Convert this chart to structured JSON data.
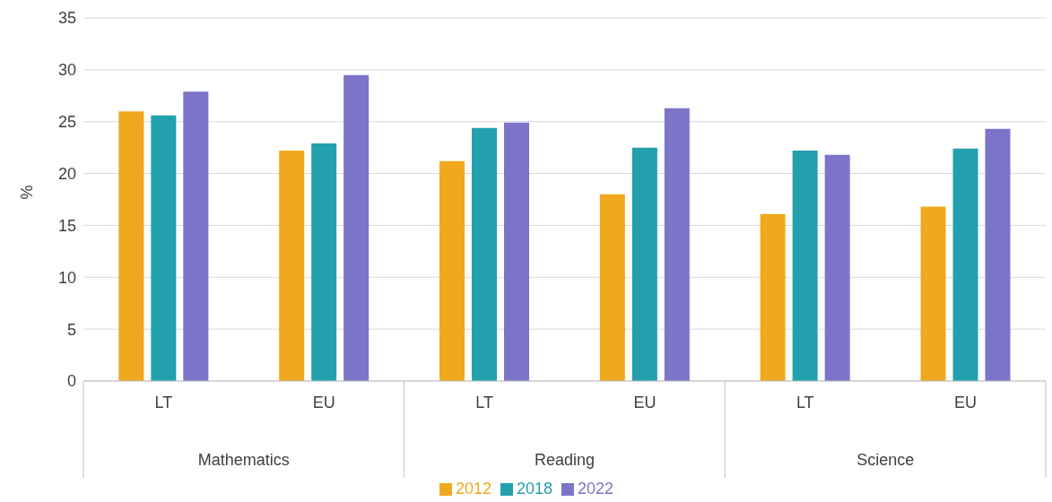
{
  "chart_data": {
    "type": "bar",
    "ylabel": "%",
    "categories": [
      "LT",
      "EU",
      "LT",
      "EU",
      "LT",
      "EU"
    ],
    "annotations": [
      "Mathematics",
      "Reading",
      "Science"
    ],
    "series": [
      {
        "name": "2012",
        "color": "#f0a81e",
        "values": [
          26.0,
          22.2,
          21.2,
          18.0,
          16.1,
          16.8
        ]
      },
      {
        "name": "2018",
        "color": "#22a0ad",
        "values": [
          25.6,
          22.9,
          24.4,
          22.5,
          22.2,
          22.4
        ]
      },
      {
        "name": "2022",
        "color": "#7b74c8",
        "values": [
          27.9,
          29.5,
          24.9,
          26.3,
          21.8,
          24.3
        ]
      }
    ],
    "ylim": [
      0,
      35
    ],
    "yticks": [
      0,
      5,
      10,
      15,
      20,
      25,
      30,
      35
    ],
    "grid": "y",
    "legend": "bottom"
  }
}
